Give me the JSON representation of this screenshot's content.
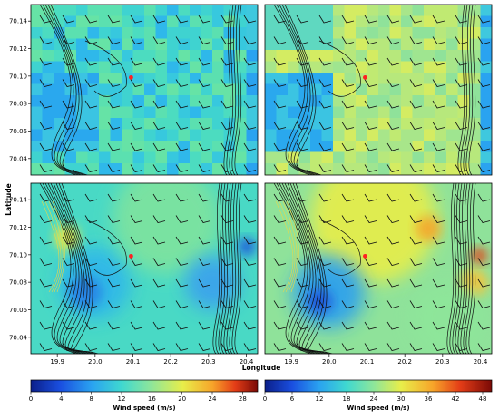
{
  "figure": {
    "ylabel": "Latitude",
    "xlabel": "Longitude",
    "colorbars": [
      {
        "label": "Wind speed (m/s)",
        "ticks": [
          0,
          4,
          8,
          12,
          16,
          20,
          24,
          28
        ],
        "range": [
          0,
          30
        ]
      },
      {
        "label": "Wind speed (m/s)",
        "ticks": [
          0,
          6,
          12,
          18,
          24,
          30,
          36,
          42,
          48
        ],
        "range": [
          0,
          50
        ]
      }
    ]
  },
  "chart_data": [
    {
      "type": "heatmap",
      "panel": "top-left",
      "xlim": [
        19.83,
        20.43
      ],
      "ylim": [
        70.028,
        70.152
      ],
      "yticks": [
        70.04,
        70.06,
        70.08,
        70.1,
        70.12,
        70.14
      ],
      "xticks": [],
      "grid": false,
      "marker": {
        "x": 20.095,
        "y": 70.099
      }
    },
    {
      "type": "heatmap",
      "panel": "top-right",
      "xlim": [
        19.83,
        20.43
      ],
      "ylim": [
        70.028,
        70.152
      ],
      "yticks": [],
      "xticks": [],
      "grid": false,
      "marker": {
        "x": 20.095,
        "y": 70.099
      }
    },
    {
      "type": "heatmap",
      "panel": "bottom-left",
      "xlim": [
        19.83,
        20.43
      ],
      "ylim": [
        70.028,
        70.152
      ],
      "yticks": [
        70.04,
        70.06,
        70.08,
        70.1,
        70.12,
        70.14
      ],
      "xticks": [
        19.9,
        20.0,
        20.1,
        20.2,
        20.3,
        20.4
      ],
      "grid": false,
      "marker": {
        "x": 20.095,
        "y": 70.099
      }
    },
    {
      "type": "heatmap",
      "panel": "bottom-right",
      "xlim": [
        19.83,
        20.43
      ],
      "ylim": [
        70.028,
        70.152
      ],
      "yticks": [],
      "xticks": [
        19.9,
        20.0,
        20.1,
        20.2,
        20.3,
        20.4
      ],
      "grid": false,
      "marker": {
        "x": 20.095,
        "y": 70.099
      }
    }
  ]
}
